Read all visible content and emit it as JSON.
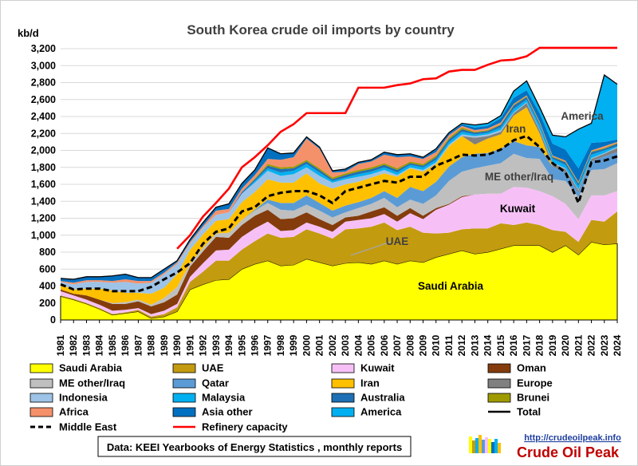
{
  "chart_data": {
    "type": "area",
    "title": "South Korea crude oil imports by country",
    "ylabel": "kb/d",
    "ylim": [
      0,
      3200
    ],
    "y_ticks": [
      0,
      200,
      400,
      600,
      800,
      1000,
      1200,
      1400,
      1600,
      1800,
      2000,
      2200,
      2400,
      2600,
      2800,
      3000,
      3200
    ],
    "y_tick_labels": [
      "0",
      "200",
      "400",
      "600",
      "800",
      "1,000",
      "1,200",
      "1,400",
      "1,600",
      "1,800",
      "2,000",
      "2,200",
      "2,400",
      "2,600",
      "2,800",
      "3,000",
      "3,200"
    ],
    "grid": true,
    "x": [
      "1981",
      "1982",
      "1983",
      "1984",
      "1985",
      "1986",
      "1987",
      "1988",
      "1989",
      "1990",
      "1991",
      "1992",
      "1993",
      "1994",
      "1995",
      "1996",
      "1997",
      "1998",
      "1999",
      "2000",
      "2001",
      "2002",
      "2003",
      "2004",
      "2005",
      "2006",
      "2007",
      "2008",
      "2009",
      "2010",
      "2011",
      "2012",
      "2013",
      "2014",
      "2015",
      "2016",
      "2017",
      "2018",
      "2019",
      "2020",
      "2021",
      "2022",
      "2023",
      "2024"
    ],
    "series": [
      {
        "name": "Saudi Arabia",
        "color": "#ffff00",
        "values": [
          280,
          240,
          190,
          130,
          60,
          80,
          100,
          20,
          40,
          100,
          360,
          420,
          470,
          480,
          600,
          660,
          700,
          640,
          650,
          720,
          680,
          640,
          670,
          680,
          660,
          700,
          660,
          700,
          680,
          740,
          780,
          820,
          780,
          800,
          840,
          880,
          880,
          880,
          800,
          880,
          770,
          920,
          890,
          900
        ]
      },
      {
        "name": "UAE",
        "color": "#c39b0f",
        "values": [
          10,
          10,
          10,
          10,
          10,
          10,
          20,
          20,
          30,
          50,
          90,
          150,
          230,
          220,
          230,
          270,
          320,
          330,
          330,
          350,
          340,
          320,
          400,
          400,
          440,
          450,
          400,
          400,
          350,
          280,
          250,
          250,
          300,
          280,
          300,
          240,
          270,
          240,
          260,
          160,
          150,
          260,
          270,
          380
        ]
      },
      {
        "name": "Kuwait",
        "color": "#f6c0f6",
        "values": [
          50,
          40,
          40,
          40,
          40,
          30,
          20,
          30,
          40,
          40,
          60,
          100,
          120,
          130,
          150,
          150,
          140,
          80,
          80,
          80,
          80,
          80,
          90,
          100,
          100,
          100,
          100,
          160,
          160,
          280,
          330,
          380,
          400,
          410,
          350,
          450,
          410,
          400,
          400,
          330,
          270,
          290,
          310,
          240
        ]
      },
      {
        "name": "Oman",
        "color": "#843c0c",
        "values": [
          20,
          20,
          50,
          60,
          80,
          70,
          80,
          90,
          100,
          110,
          120,
          140,
          160,
          140,
          140,
          150,
          140,
          140,
          140,
          120,
          90,
          80,
          50,
          50,
          80,
          80,
          70,
          60,
          40,
          20,
          10,
          10,
          0,
          0,
          0,
          0,
          0,
          0,
          0,
          0,
          0,
          0,
          0,
          0
        ]
      },
      {
        "name": "ME other/Iraq",
        "color": "#bfbfbf",
        "values": [
          0,
          0,
          0,
          0,
          10,
          20,
          20,
          20,
          50,
          90,
          40,
          40,
          40,
          60,
          60,
          60,
          80,
          110,
          90,
          90,
          100,
          90,
          60,
          90,
          90,
          110,
          100,
          100,
          140,
          150,
          270,
          290,
          310,
          330,
          360,
          390,
          350,
          380,
          200,
          270,
          260,
          300,
          310,
          330
        ]
      },
      {
        "name": "Qatar",
        "color": "#5b9bd5",
        "values": [
          0,
          0,
          0,
          0,
          0,
          0,
          0,
          0,
          0,
          0,
          0,
          0,
          0,
          0,
          0,
          10,
          40,
          80,
          90,
          110,
          90,
          80,
          80,
          70,
          70,
          80,
          110,
          150,
          150,
          160,
          170,
          170,
          170,
          150,
          170,
          150,
          150,
          140,
          150,
          100,
          50,
          100,
          150,
          130
        ]
      },
      {
        "name": "Iran",
        "color": "#ffc000",
        "values": [
          60,
          50,
          80,
          130,
          150,
          110,
          80,
          130,
          120,
          150,
          160,
          160,
          150,
          160,
          210,
          210,
          240,
          240,
          240,
          260,
          230,
          260,
          250,
          240,
          240,
          210,
          250,
          220,
          230,
          210,
          240,
          250,
          110,
          170,
          170,
          300,
          450,
          160,
          0,
          0,
          0,
          0,
          0,
          0
        ]
      },
      {
        "name": "Europe",
        "color": "#808080",
        "values": [
          0,
          0,
          0,
          0,
          0,
          0,
          0,
          0,
          0,
          0,
          0,
          0,
          0,
          0,
          0,
          0,
          0,
          0,
          0,
          0,
          0,
          0,
          0,
          0,
          0,
          0,
          0,
          0,
          0,
          0,
          0,
          0,
          80,
          30,
          30,
          30,
          50,
          40,
          40,
          40,
          30,
          30,
          30,
          50
        ]
      },
      {
        "name": "Indonesia",
        "color": "#9dc3e6",
        "values": [
          30,
          60,
          80,
          80,
          90,
          130,
          110,
          130,
          160,
          120,
          70,
          80,
          70,
          80,
          100,
          110,
          100,
          80,
          100,
          70,
          90,
          70,
          60,
          60,
          40,
          40,
          20,
          10,
          20,
          20,
          20,
          20,
          20,
          20,
          20,
          10,
          10,
          10,
          10,
          10,
          10,
          10,
          10,
          10
        ]
      },
      {
        "name": "Malaysia",
        "color": "#00b0f0",
        "values": [
          0,
          0,
          0,
          0,
          0,
          0,
          0,
          0,
          0,
          0,
          0,
          0,
          0,
          0,
          0,
          20,
          30,
          40,
          40,
          40,
          40,
          20,
          20,
          30,
          30,
          30,
          30,
          30,
          30,
          30,
          30,
          30,
          20,
          20,
          30,
          40,
          30,
          50,
          40,
          40,
          40,
          40,
          30,
          10
        ]
      },
      {
        "name": "Australia",
        "color": "#1f6fb4",
        "values": [
          0,
          0,
          0,
          0,
          0,
          0,
          0,
          0,
          0,
          0,
          0,
          0,
          0,
          0,
          20,
          20,
          30,
          40,
          30,
          30,
          30,
          20,
          30,
          30,
          30,
          30,
          30,
          20,
          20,
          30,
          30,
          30,
          20,
          20,
          30,
          40,
          30,
          20,
          20,
          30,
          30,
          30,
          20,
          30
        ]
      },
      {
        "name": "Brunei",
        "color": "#9e9a00",
        "values": [
          0,
          0,
          0,
          0,
          0,
          0,
          0,
          0,
          0,
          0,
          0,
          0,
          0,
          0,
          0,
          10,
          20,
          20,
          20,
          20,
          20,
          20,
          20,
          20,
          20,
          20,
          20,
          20,
          20,
          20,
          20,
          20,
          10,
          10,
          10,
          10,
          10,
          10,
          10,
          10,
          10,
          10,
          10,
          10
        ]
      },
      {
        "name": "Africa",
        "color": "#f4916a",
        "values": [
          10,
          20,
          20,
          20,
          20,
          30,
          30,
          20,
          20,
          20,
          20,
          20,
          50,
          40,
          40,
          40,
          60,
          90,
          110,
          250,
          230,
          60,
          20,
          70,
          70,
          100,
          130,
          60,
          60,
          40,
          30,
          20,
          20,
          20,
          20,
          10,
          10,
          10,
          10,
          10,
          10,
          10,
          20,
          10
        ]
      },
      {
        "name": "Asia other",
        "color": "#0070c0",
        "values": [
          30,
          40,
          40,
          40,
          60,
          60,
          40,
          40,
          40,
          20,
          30,
          40,
          40,
          60,
          60,
          60,
          130,
          70,
          50,
          20,
          20,
          20,
          30,
          20,
          20,
          30,
          30,
          30,
          20,
          30,
          20,
          20,
          30,
          30,
          50,
          70,
          60,
          100,
          140,
          130,
          160,
          90,
          50,
          30
        ]
      },
      {
        "name": "America",
        "color": "#00b0f0",
        "values": [
          0,
          0,
          0,
          0,
          0,
          0,
          0,
          0,
          0,
          0,
          0,
          0,
          0,
          0,
          0,
          0,
          0,
          0,
          0,
          0,
          0,
          0,
          0,
          0,
          0,
          0,
          0,
          0,
          0,
          10,
          10,
          10,
          30,
          30,
          30,
          80,
          110,
          70,
          100,
          150,
          460,
          230,
          790,
          650
        ]
      }
    ],
    "lines": [
      {
        "name": "Middle East",
        "style": "dashed",
        "color": "#000000",
        "values": [
          420,
          360,
          370,
          370,
          340,
          340,
          340,
          390,
          480,
          560,
          670,
          900,
          1040,
          1080,
          1280,
          1330,
          1460,
          1500,
          1520,
          1520,
          1470,
          1380,
          1520,
          1560,
          1600,
          1640,
          1620,
          1690,
          1690,
          1820,
          1880,
          1950,
          1940,
          1950,
          2010,
          2120,
          2170,
          2040,
          1850,
          1740,
          1380,
          1860,
          1880,
          1930
        ]
      },
      {
        "name": "Refinery capacity",
        "style": "solid",
        "color": "#ff0000",
        "values": [
          null,
          null,
          null,
          null,
          null,
          null,
          null,
          null,
          null,
          840,
          1000,
          1220,
          1380,
          1550,
          1800,
          1920,
          2060,
          2220,
          2310,
          2440,
          2440,
          2440,
          2440,
          2740,
          2740,
          2740,
          2770,
          2790,
          2840,
          2850,
          2930,
          2950,
          2950,
          3010,
          3060,
          3070,
          3110,
          3210,
          3210,
          3210,
          3210,
          3210,
          3210,
          3210
        ]
      }
    ],
    "annotations": [
      "Saudi Arabia",
      "UAE",
      "Kuwait",
      "ME other/Iraq",
      "Iran",
      "America"
    ],
    "legend_placement": "bottom",
    "legend": [
      {
        "label": "Saudi Arabia",
        "kind": "box",
        "color": "#ffff00"
      },
      {
        "label": "UAE",
        "kind": "box",
        "color": "#c39b0f"
      },
      {
        "label": "Kuwait",
        "kind": "box",
        "color": "#f6c0f6"
      },
      {
        "label": "Oman",
        "kind": "box",
        "color": "#843c0c"
      },
      {
        "label": "ME other/Iraq",
        "kind": "box",
        "color": "#bfbfbf"
      },
      {
        "label": "Qatar",
        "kind": "box",
        "color": "#5b9bd5"
      },
      {
        "label": "Iran",
        "kind": "box",
        "color": "#ffc000"
      },
      {
        "label": "Europe",
        "kind": "box",
        "color": "#808080"
      },
      {
        "label": "Indonesia",
        "kind": "box",
        "color": "#9dc3e6"
      },
      {
        "label": "Malaysia",
        "kind": "box",
        "color": "#00b0f0"
      },
      {
        "label": "Australia",
        "kind": "box",
        "color": "#1f6fb4"
      },
      {
        "label": "Brunei",
        "kind": "box",
        "color": "#9e9a00"
      },
      {
        "label": "Africa",
        "kind": "box",
        "color": "#f4916a"
      },
      {
        "label": "Asia other",
        "kind": "box",
        "color": "#0070c0"
      },
      {
        "label": "America",
        "kind": "box",
        "color": "#00b0f0"
      },
      {
        "label": "Total",
        "kind": "line",
        "color": "#000000"
      },
      {
        "label": "Middle East",
        "kind": "dash",
        "color": "#000000"
      },
      {
        "label": "Refinery capacity",
        "kind": "line",
        "color": "#ff0000"
      }
    ],
    "source_note": "Data: KEEI Yearbooks of Energy Statistics , monthly reports",
    "brand_url": "http://crudeoilpeak.info",
    "brand_name": "Crude Oil Peak"
  }
}
